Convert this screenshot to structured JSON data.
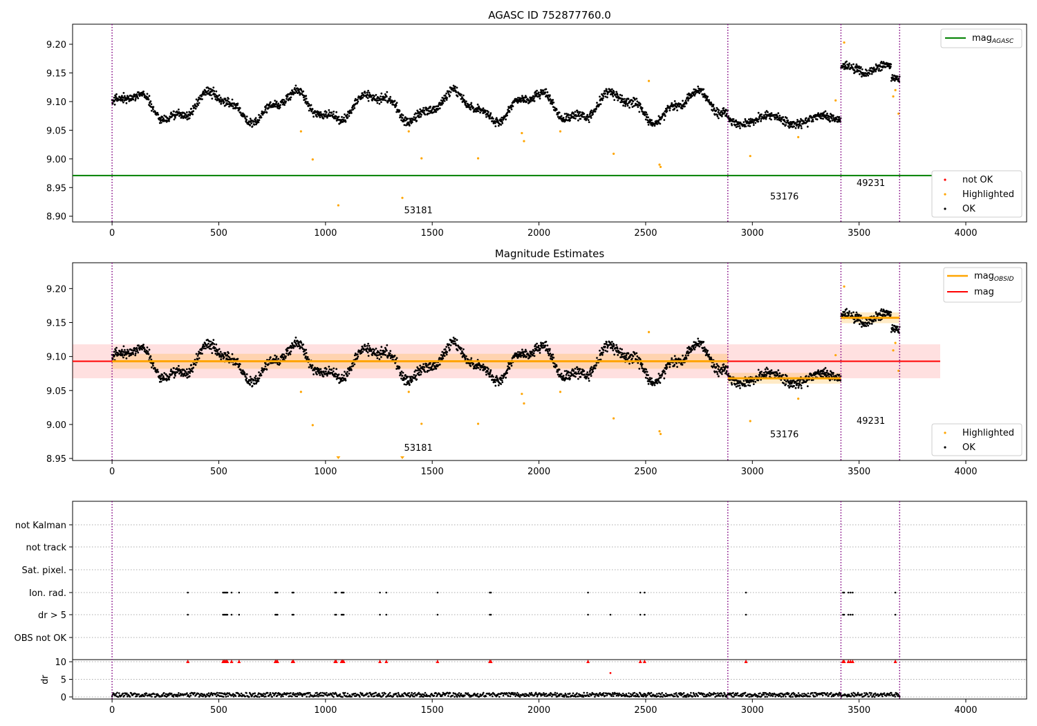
{
  "chart_data": [
    {
      "type": "scatter",
      "title": "AGASC ID 752877760.0",
      "xlim": [
        -185,
        4285
      ],
      "ylim": [
        8.89,
        9.235
      ],
      "xticks": [
        "0",
        "500",
        "1000",
        "1500",
        "2000",
        "2500",
        "3000",
        "3500",
        "4000"
      ],
      "yticks": [
        "8.90",
        "8.95",
        "9.00",
        "9.05",
        "9.10",
        "9.15",
        "9.20"
      ],
      "reference_line": {
        "name": "mag_AGASC",
        "y": 8.971,
        "color": "#008000"
      },
      "obsid_boundaries": [
        0,
        2885,
        3415,
        3690
      ],
      "obsid_labels": [
        {
          "text": "53181",
          "x": 1435,
          "y": 8.905
        },
        {
          "text": "53176",
          "x": 3150,
          "y": 8.929
        },
        {
          "text": "49231",
          "x": 3555,
          "y": 8.953
        }
      ],
      "legend": {
        "position": "top-right",
        "entries": [
          "mag_AGASC"
        ]
      },
      "legend2": {
        "position": "bottom-right",
        "entries": [
          "not OK",
          "Highlighted",
          "OK"
        ]
      },
      "ok_color": "#000000",
      "highlight_color": "#ffa500",
      "not_ok_color": "#ff0000",
      "highlighted_points": [
        [
          885,
          9.048
        ],
        [
          940,
          8.999
        ],
        [
          1060,
          8.919
        ],
        [
          1360,
          8.932
        ],
        [
          1390,
          9.048
        ],
        [
          1450,
          9.001
        ],
        [
          1715,
          9.001
        ],
        [
          1920,
          9.045
        ],
        [
          1930,
          9.031
        ],
        [
          2100,
          9.048
        ],
        [
          2350,
          9.009
        ],
        [
          2515,
          9.136
        ],
        [
          2565,
          8.99
        ],
        [
          2570,
          8.986
        ],
        [
          2990,
          9.005
        ],
        [
          3215,
          9.038
        ],
        [
          3390,
          9.102
        ],
        [
          3430,
          9.203
        ],
        [
          3660,
          9.109
        ],
        [
          3670,
          9.12
        ],
        [
          3685,
          9.079
        ]
      ]
    },
    {
      "type": "scatter",
      "title": "Magnitude Estimates",
      "xlim": [
        -185,
        4285
      ],
      "ylim": [
        8.947,
        9.238
      ],
      "xticks": [
        "0",
        "500",
        "1000",
        "1500",
        "2000",
        "2500",
        "3000",
        "3500",
        "4000"
      ],
      "yticks": [
        "8.95",
        "9.00",
        "9.05",
        "9.10",
        "9.15",
        "9.20"
      ],
      "mag": {
        "y": 9.093,
        "band": [
          9.068,
          9.118
        ],
        "x_range": [
          -185,
          3880
        ],
        "color": "#ff0000"
      },
      "mag_obsid": [
        {
          "x_range": [
            0,
            2885
          ],
          "y": 9.093,
          "band": [
            9.082,
            9.104
          ]
        },
        {
          "x_range": [
            2885,
            3415
          ],
          "y": 9.068,
          "band": [
            9.06,
            9.076
          ]
        },
        {
          "x_range": [
            3415,
            3690
          ],
          "y": 9.157,
          "band": [
            9.149,
            9.165
          ]
        }
      ],
      "obsid_boundaries": [
        0,
        2885,
        3415,
        3690
      ],
      "obsid_labels": [
        {
          "text": "53181",
          "x": 1435,
          "y": 8.961
        },
        {
          "text": "53176",
          "x": 3150,
          "y": 8.981
        },
        {
          "text": "49231",
          "x": 3555,
          "y": 9.001
        }
      ],
      "legend": {
        "position": "top-right",
        "entries": [
          "mag_OBSID",
          "mag"
        ]
      },
      "legend2": {
        "position": "bottom-right",
        "entries": [
          "Highlighted",
          "OK"
        ]
      },
      "clipped_markers": [
        1060,
        1360
      ]
    },
    {
      "type": "scatter",
      "title": "",
      "xlim": [
        -185,
        4285
      ],
      "flag_rows": [
        "not Kalman",
        "not track",
        "Sat. pixel.",
        "Ion. rad.",
        "dr > 5",
        "OBS not OK"
      ],
      "flag_points": {
        "Ion. rad.": [
          355,
          520,
          525,
          530,
          535,
          540,
          560,
          595,
          765,
          770,
          775,
          845,
          850,
          1045,
          1050,
          1075,
          1080,
          1085,
          1255,
          1285,
          1525,
          1770,
          1775,
          2230,
          2475,
          2495,
          2970,
          3425,
          3430,
          3450,
          3460,
          3470,
          3670
        ],
        "dr > 5": [
          355,
          520,
          525,
          530,
          535,
          540,
          560,
          595,
          765,
          770,
          775,
          845,
          850,
          1045,
          1050,
          1075,
          1080,
          1085,
          1255,
          1285,
          1525,
          1770,
          1775,
          2230,
          2335,
          2475,
          2495,
          2970,
          3425,
          3430,
          3450,
          3460,
          3470,
          3670
        ]
      },
      "dr_panel": {
        "ylabel": "dr",
        "yticks": [
          "0",
          "5",
          "10"
        ],
        "ylim": [
          -0.6,
          10.6
        ],
        "clipped_at": 10,
        "clipped_x": [
          355,
          520,
          525,
          530,
          535,
          540,
          560,
          595,
          765,
          770,
          775,
          845,
          850,
          1045,
          1050,
          1075,
          1080,
          1085,
          1255,
          1285,
          1525,
          1770,
          1775,
          2230,
          2475,
          2495,
          2970,
          3425,
          3430,
          3450,
          3460,
          3470,
          3670
        ],
        "mid_points": [
          [
            2335,
            6.8
          ]
        ],
        "baseline_range": [
          0,
          1.6
        ]
      },
      "xticks": [
        "0",
        "500",
        "1000",
        "1500",
        "2000",
        "2500",
        "3000",
        "3500",
        "4000"
      ],
      "obsid_boundaries": [
        0,
        2885,
        3415,
        3690
      ]
    }
  ]
}
